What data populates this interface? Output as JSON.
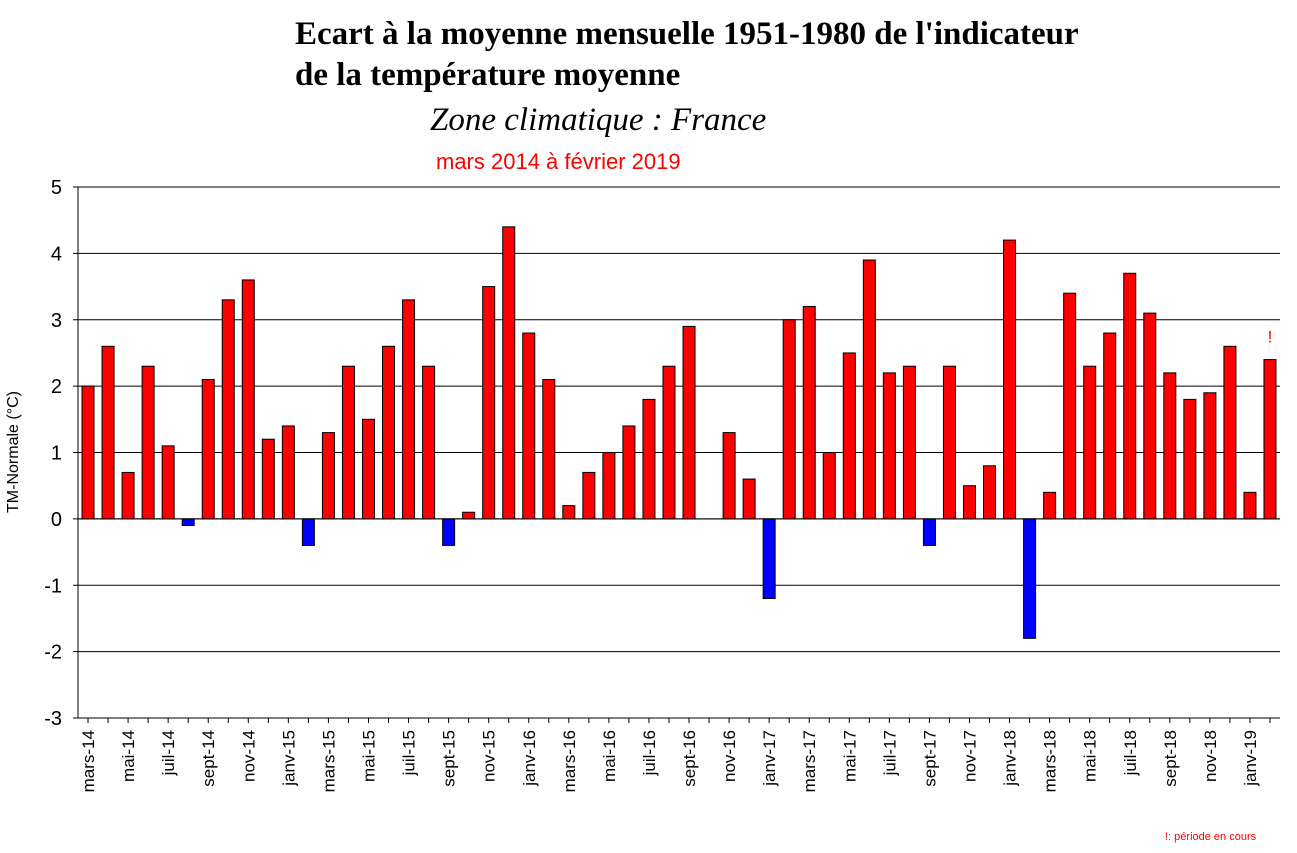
{
  "chart_title_line1": "Ecart à la moyenne mensuelle 1951-1980 de l'indicateur",
  "chart_title_line2": "de la température moyenne",
  "chart_subtitle": "Zone climatique : France",
  "period_label": "mars 2014 à février 2019",
  "footnote": "!: période en cours",
  "colors": {
    "positive": "#ff0000",
    "negative": "#0000ff",
    "period_text": "#ff0000"
  },
  "chart_data": {
    "type": "bar",
    "ylabel": "TM-Normale (°C)",
    "ylim": [
      -3,
      5
    ],
    "yticks": [
      5,
      4,
      3,
      2,
      1,
      0,
      -1,
      -2,
      -3
    ],
    "grid": true,
    "in_progress_marker": "!",
    "categories": [
      "mars-14",
      "avr-14",
      "mai-14",
      "juin-14",
      "juil-14",
      "août-14",
      "sept-14",
      "oct-14",
      "nov-14",
      "déc-14",
      "janv-15",
      "févr-15",
      "mars-15",
      "avr-15",
      "mai-15",
      "juin-15",
      "juil-15",
      "août-15",
      "sept-15",
      "oct-15",
      "nov-15",
      "déc-15",
      "janv-16",
      "févr-16",
      "mars-16",
      "avr-16",
      "mai-16",
      "juin-16",
      "juil-16",
      "août-16",
      "sept-16",
      "oct-16",
      "nov-16",
      "déc-16",
      "janv-17",
      "févr-17",
      "mars-17",
      "avr-17",
      "mai-17",
      "juin-17",
      "juil-17",
      "août-17",
      "sept-17",
      "oct-17",
      "nov-17",
      "déc-17",
      "janv-18",
      "févr-18",
      "mars-18",
      "avr-18",
      "mai-18",
      "juin-18",
      "juil-18",
      "août-18",
      "sept-18",
      "oct-18",
      "nov-18",
      "déc-18",
      "janv-19",
      "févr-19"
    ],
    "xtick_labels": [
      "mars-14",
      "mai-14",
      "juil-14",
      "sept-14",
      "nov-14",
      "janv-15",
      "mars-15",
      "mai-15",
      "juil-15",
      "sept-15",
      "nov-15",
      "janv-16",
      "mars-16",
      "mai-16",
      "juil-16",
      "sept-16",
      "nov-16",
      "janv-17",
      "mars-17",
      "mai-17",
      "juil-17",
      "sept-17",
      "nov-17",
      "janv-18",
      "mars-18",
      "mai-18",
      "juil-18",
      "sept-18",
      "nov-18",
      "janv-19"
    ],
    "values": [
      2.0,
      2.6,
      0.7,
      2.3,
      1.1,
      -0.1,
      2.1,
      3.3,
      3.6,
      1.2,
      1.4,
      -0.4,
      1.3,
      2.3,
      1.5,
      2.6,
      3.3,
      2.3,
      -0.4,
      0.1,
      3.5,
      4.4,
      2.8,
      2.1,
      0.2,
      0.7,
      1.0,
      1.4,
      1.8,
      2.3,
      2.9,
      0.0,
      1.3,
      0.6,
      -1.2,
      3.0,
      3.2,
      1.0,
      2.5,
      3.9,
      2.2,
      2.3,
      -0.4,
      2.3,
      0.5,
      0.8,
      4.2,
      -1.8,
      0.4,
      3.4,
      2.3,
      2.8,
      3.7,
      3.1,
      2.2,
      1.8,
      1.9,
      2.6,
      0.4,
      2.4
    ]
  }
}
